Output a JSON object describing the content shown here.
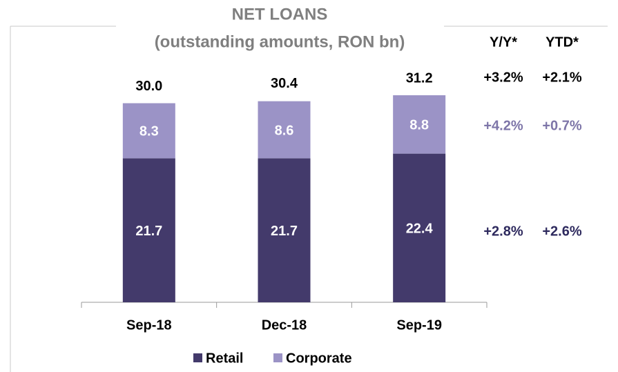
{
  "chart_data": {
    "type": "bar",
    "stacked": true,
    "title": "NET LOANS",
    "subtitle": "(outstanding amounts, RON bn)",
    "categories": [
      "Sep-18",
      "Dec-18",
      "Sep-19"
    ],
    "series": [
      {
        "name": "Retail",
        "color": "#433a6b",
        "values": [
          21.7,
          21.7,
          22.4
        ]
      },
      {
        "name": "Corporate",
        "color": "#9b93c6",
        "values": [
          8.3,
          8.6,
          8.8
        ]
      }
    ],
    "totals": [
      30.0,
      30.4,
      31.2
    ],
    "total_labels": [
      "30.0",
      "30.4",
      "31.2"
    ],
    "growth_table": {
      "columns": [
        "Y/Y*",
        "YTD*"
      ],
      "rows": [
        [
          "+3.2%",
          "+2.1%"
        ],
        [
          "+4.2%",
          "+0.7%"
        ],
        [
          "+2.8%",
          "+2.6%"
        ]
      ]
    }
  }
}
